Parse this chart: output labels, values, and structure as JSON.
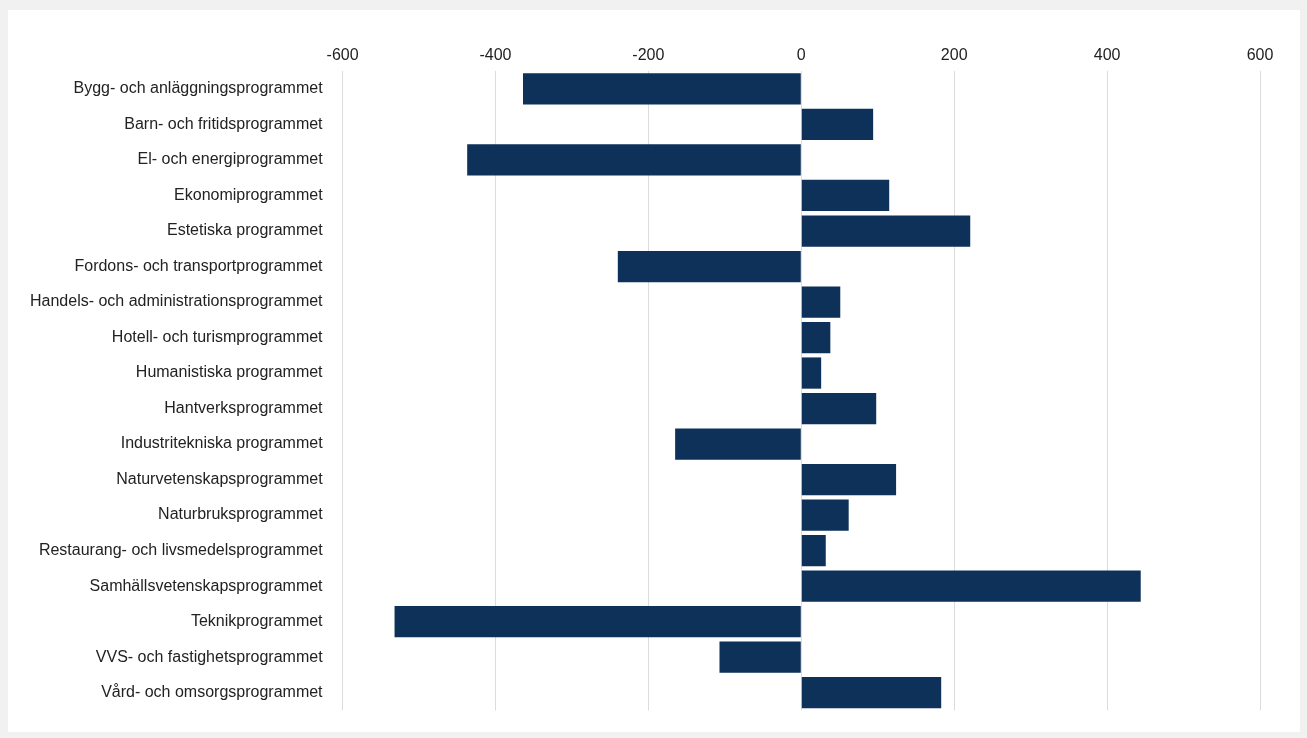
{
  "chart_data": {
    "type": "bar",
    "orientation": "horizontal",
    "categories": [
      "Bygg- och anläggningsprogrammet",
      "Barn- och fritidsprogrammet",
      "El- och energiprogrammet",
      "Ekonomiprogrammet",
      "Estetiska programmet",
      "Fordons- och transportprogrammet",
      "Handels- och administrationsprogrammet",
      "Hotell- och turismprogrammet",
      "Humanistiska programmet",
      "Hantverksprogrammet",
      "Industritekniska programmet",
      "Naturvetenskapsprogrammet",
      "Naturbruksprogrammet",
      "Restaurang- och livsmedelsprogrammet",
      "Samhällsvetenskapsprogrammet",
      "Teknikprogrammet",
      "VVS- och fastighetsprogrammet",
      "Vård- och omsorgsprogrammet"
    ],
    "values": [
      -364,
      94,
      -437,
      115,
      221,
      -240,
      51,
      38,
      26,
      98,
      -165,
      124,
      62,
      32,
      444,
      -532,
      -107,
      183
    ],
    "color": "#0d3158",
    "xlim": [
      -600,
      600
    ],
    "xticks": [
      -600,
      -400,
      -200,
      0,
      200,
      400,
      600
    ],
    "grid": "x",
    "legend": false
  }
}
